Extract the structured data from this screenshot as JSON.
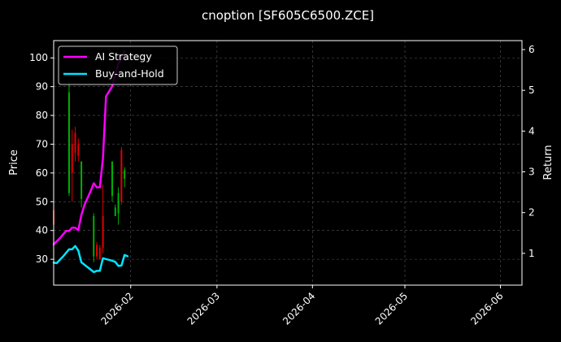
{
  "chart_data": {
    "type": "line",
    "title": "cnoption [SF605C6500.ZCE]",
    "ylabel_left": "Price",
    "ylabel_right": "Return",
    "ylim_left": [
      21,
      106
    ],
    "ylim_right": [
      0.22,
      6.22
    ],
    "xlim": [
      "2026-01-07",
      "2026-06-08"
    ],
    "x_ticks": [
      "2026-02",
      "2026-03",
      "2026-04",
      "2026-05",
      "2026-06"
    ],
    "y_left_ticks": [
      30,
      40,
      50,
      60,
      70,
      80,
      90,
      100
    ],
    "y_right_ticks": [
      1,
      2,
      3,
      4,
      5,
      6
    ],
    "grid": true,
    "legend_position": "top-left",
    "series": [
      {
        "name": "AI Strategy",
        "color": "#ff00ff",
        "axis": "right",
        "points": [
          [
            "2026-01-07",
            1.22
          ],
          [
            "2026-01-09",
            1.37
          ],
          [
            "2026-01-11",
            1.55
          ],
          [
            "2026-01-12",
            1.55
          ],
          [
            "2026-01-13",
            1.63
          ],
          [
            "2026-01-14",
            1.63
          ],
          [
            "2026-01-15",
            1.57
          ],
          [
            "2026-01-16",
            1.94
          ],
          [
            "2026-01-17",
            2.19
          ],
          [
            "2026-01-19",
            2.53
          ],
          [
            "2026-01-20",
            2.72
          ],
          [
            "2026-01-21",
            2.62
          ],
          [
            "2026-01-22",
            2.62
          ],
          [
            "2026-01-23",
            3.33
          ],
          [
            "2026-01-24",
            4.85
          ],
          [
            "2026-01-26",
            5.1
          ],
          [
            "2026-01-28",
            5.65
          ],
          [
            "2026-01-29",
            5.8
          ],
          [
            "2026-01-30",
            5.95
          ]
        ]
      },
      {
        "name": "Buy-and-Hold",
        "color": "#00e5ff",
        "axis": "right",
        "points": [
          [
            "2026-01-07",
            0.77
          ],
          [
            "2026-01-08",
            0.76
          ],
          [
            "2026-01-10",
            0.92
          ],
          [
            "2026-01-12",
            1.1
          ],
          [
            "2026-01-13",
            1.1
          ],
          [
            "2026-01-14",
            1.18
          ],
          [
            "2026-01-15",
            1.07
          ],
          [
            "2026-01-16",
            0.78
          ],
          [
            "2026-01-18",
            0.66
          ],
          [
            "2026-01-20",
            0.54
          ],
          [
            "2026-01-21",
            0.57
          ],
          [
            "2026-01-22",
            0.57
          ],
          [
            "2026-01-23",
            0.88
          ],
          [
            "2026-01-26",
            0.82
          ],
          [
            "2026-01-27",
            0.79
          ],
          [
            "2026-01-28",
            0.69
          ],
          [
            "2026-01-29",
            0.7
          ],
          [
            "2026-01-30",
            0.96
          ],
          [
            "2026-01-31",
            0.93
          ]
        ]
      }
    ],
    "candles": [
      {
        "date": "2026-01-07",
        "open": 47,
        "close": 42,
        "high": 50,
        "low": 40
      },
      {
        "date": "2026-01-12",
        "open": 53,
        "close": 88,
        "high": 92,
        "low": 52
      },
      {
        "date": "2026-01-13",
        "open": 70,
        "close": 60,
        "high": 75,
        "low": 50
      },
      {
        "date": "2026-01-14",
        "open": 74,
        "close": 67,
        "high": 76,
        "low": 64
      },
      {
        "date": "2026-01-15",
        "open": 70,
        "close": 66,
        "high": 72,
        "low": 64
      },
      {
        "date": "2026-01-16",
        "open": 51,
        "close": 64,
        "high": 64,
        "low": 48
      },
      {
        "date": "2026-01-20",
        "open": 31,
        "close": 45,
        "high": 46,
        "low": 29
      },
      {
        "date": "2026-01-21",
        "open": 35,
        "close": 31,
        "high": 36,
        "low": 30
      },
      {
        "date": "2026-01-22",
        "open": 34,
        "close": 30,
        "high": 35,
        "low": 30
      },
      {
        "date": "2026-01-23",
        "open": 45,
        "close": 34,
        "high": 56,
        "low": 32
      },
      {
        "date": "2026-01-26",
        "open": 52,
        "close": 64,
        "high": 64,
        "low": 50
      },
      {
        "date": "2026-01-27",
        "open": 45,
        "close": 48,
        "high": 49,
        "low": 45
      },
      {
        "date": "2026-01-28",
        "open": 46,
        "close": 53,
        "high": 55,
        "low": 42
      },
      {
        "date": "2026-01-29",
        "open": 68,
        "close": 50,
        "high": 69,
        "low": 49
      },
      {
        "date": "2026-01-30",
        "open": 58,
        "close": 61,
        "high": 62,
        "low": 55
      }
    ],
    "candle_up_color": "#00b000",
    "candle_down_color": "#e00000"
  }
}
